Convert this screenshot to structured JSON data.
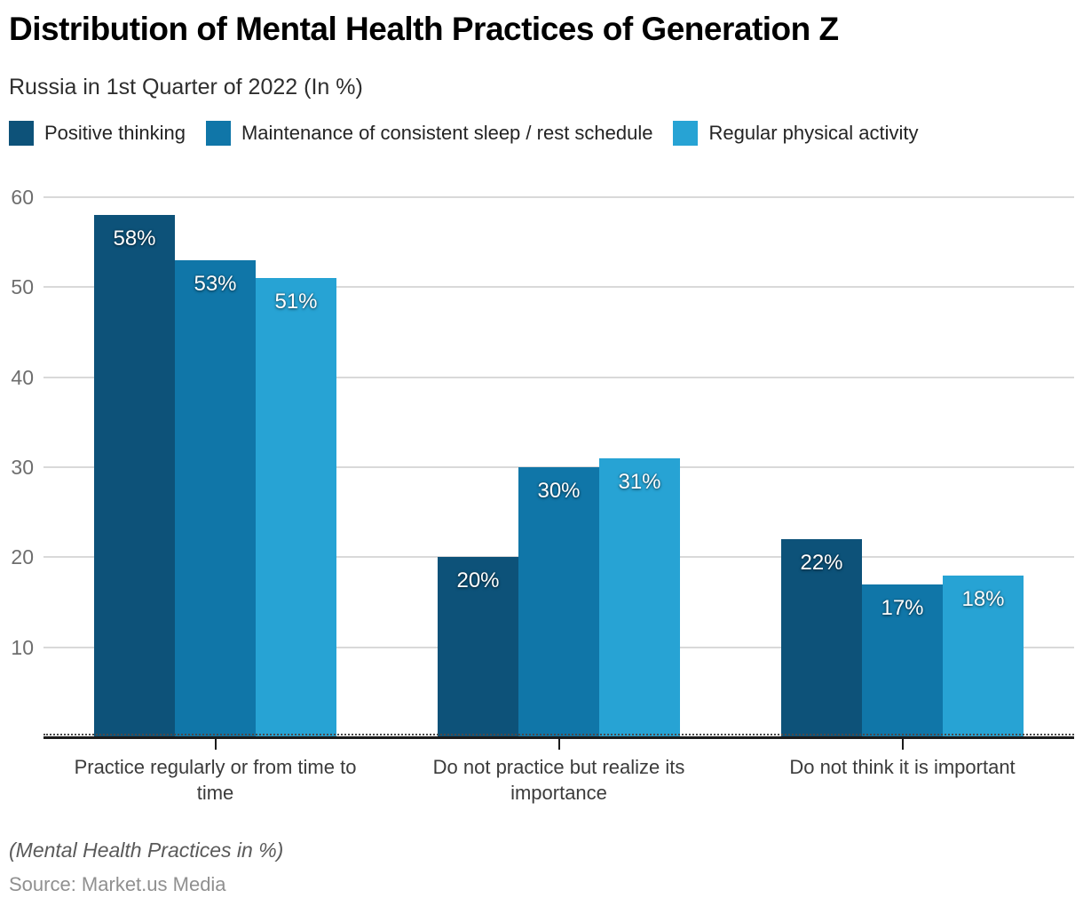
{
  "title": "Distribution of Mental Health Practices of Generation Z",
  "subtitle": "Russia in 1st Quarter of 2022 (In %)",
  "chart_data": {
    "type": "bar",
    "title": "Distribution of Mental Health Practices of Generation Z",
    "subtitle": "Russia in 1st Quarter of 2022 (In %)",
    "categories": [
      "Practice regularly or from time to time",
      "Do not practice but realize its importance",
      "Do not think it is important"
    ],
    "series": [
      {
        "name": "Positive thinking",
        "color": "#0d5279",
        "values": [
          58,
          20,
          22
        ]
      },
      {
        "name": "Maintenance of consistent sleep / rest schedule",
        "color": "#1076a8",
        "values": [
          53,
          30,
          17
        ]
      },
      {
        "name": "Regular physical activity",
        "color": "#27a3d4",
        "values": [
          51,
          31,
          18
        ]
      }
    ],
    "value_suffix": "%",
    "y_ticks": [
      10,
      20,
      30,
      40,
      50,
      60
    ],
    "ylim": [
      0,
      60
    ],
    "xlabel": "",
    "ylabel": "",
    "grid": true,
    "legend_position": "top"
  },
  "footer": {
    "note": "(Mental Health Practices in %)",
    "source": "Source: Market.us Media"
  },
  "colors": {
    "grid": "#d9d9d9",
    "axis": "#1b1b1b",
    "y_tick_label": "#6e6e6e",
    "category_label": "#3b3b3b",
    "value_label": "#ffffff"
  }
}
